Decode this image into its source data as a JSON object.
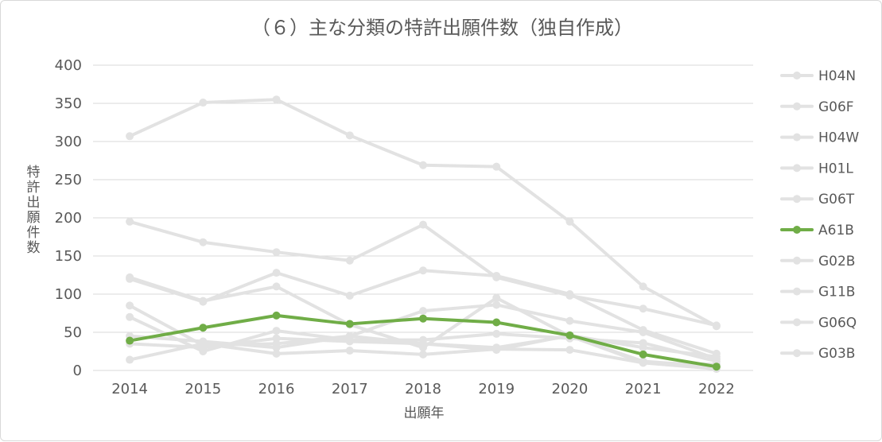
{
  "chart_data": {
    "type": "line",
    "title": "（６）主な分類の特許出願件数（独自作成）",
    "xlabel": "出願年",
    "ylabel": "特許出願件数",
    "ylim": [
      0,
      400
    ],
    "yticks": [
      0,
      50,
      100,
      150,
      200,
      250,
      300,
      350,
      400
    ],
    "categories": [
      "2014",
      "2015",
      "2016",
      "2017",
      "2018",
      "2019",
      "2020",
      "2021",
      "2022"
    ],
    "grid": true,
    "legend_position": "right",
    "highlight_color": "#70ad47",
    "base_color": "#e2e2e2",
    "series": [
      {
        "name": "H04N",
        "values": [
          307,
          351,
          355,
          308,
          269,
          267,
          195,
          110,
          58
        ],
        "highlight": false
      },
      {
        "name": "G06F",
        "values": [
          195,
          168,
          155,
          144,
          191,
          122,
          98,
          81,
          59
        ],
        "highlight": false
      },
      {
        "name": "H04W",
        "values": [
          120,
          90,
          128,
          98,
          131,
          124,
          100,
          53,
          22
        ],
        "highlight": false
      },
      {
        "name": "H01L",
        "values": [
          122,
          91,
          110,
          60,
          30,
          95,
          45,
          12,
          5
        ],
        "highlight": false
      },
      {
        "name": "G06T",
        "values": [
          85,
          33,
          35,
          45,
          78,
          86,
          65,
          50,
          15
        ],
        "highlight": false
      },
      {
        "name": "A61B",
        "values": [
          39,
          56,
          72,
          61,
          68,
          63,
          46,
          21,
          5
        ],
        "highlight": true
      },
      {
        "name": "G02B",
        "values": [
          70,
          25,
          52,
          40,
          40,
          48,
          42,
          36,
          12
        ],
        "highlight": false
      },
      {
        "name": "G11B",
        "values": [
          45,
          38,
          30,
          45,
          35,
          30,
          45,
          10,
          8
        ],
        "highlight": false
      },
      {
        "name": "G06Q",
        "values": [
          35,
          30,
          42,
          38,
          35,
          27,
          46,
          30,
          18
        ],
        "highlight": false
      },
      {
        "name": "G03B",
        "values": [
          14,
          35,
          22,
          26,
          21,
          28,
          27,
          10,
          2
        ],
        "highlight": false
      }
    ]
  }
}
